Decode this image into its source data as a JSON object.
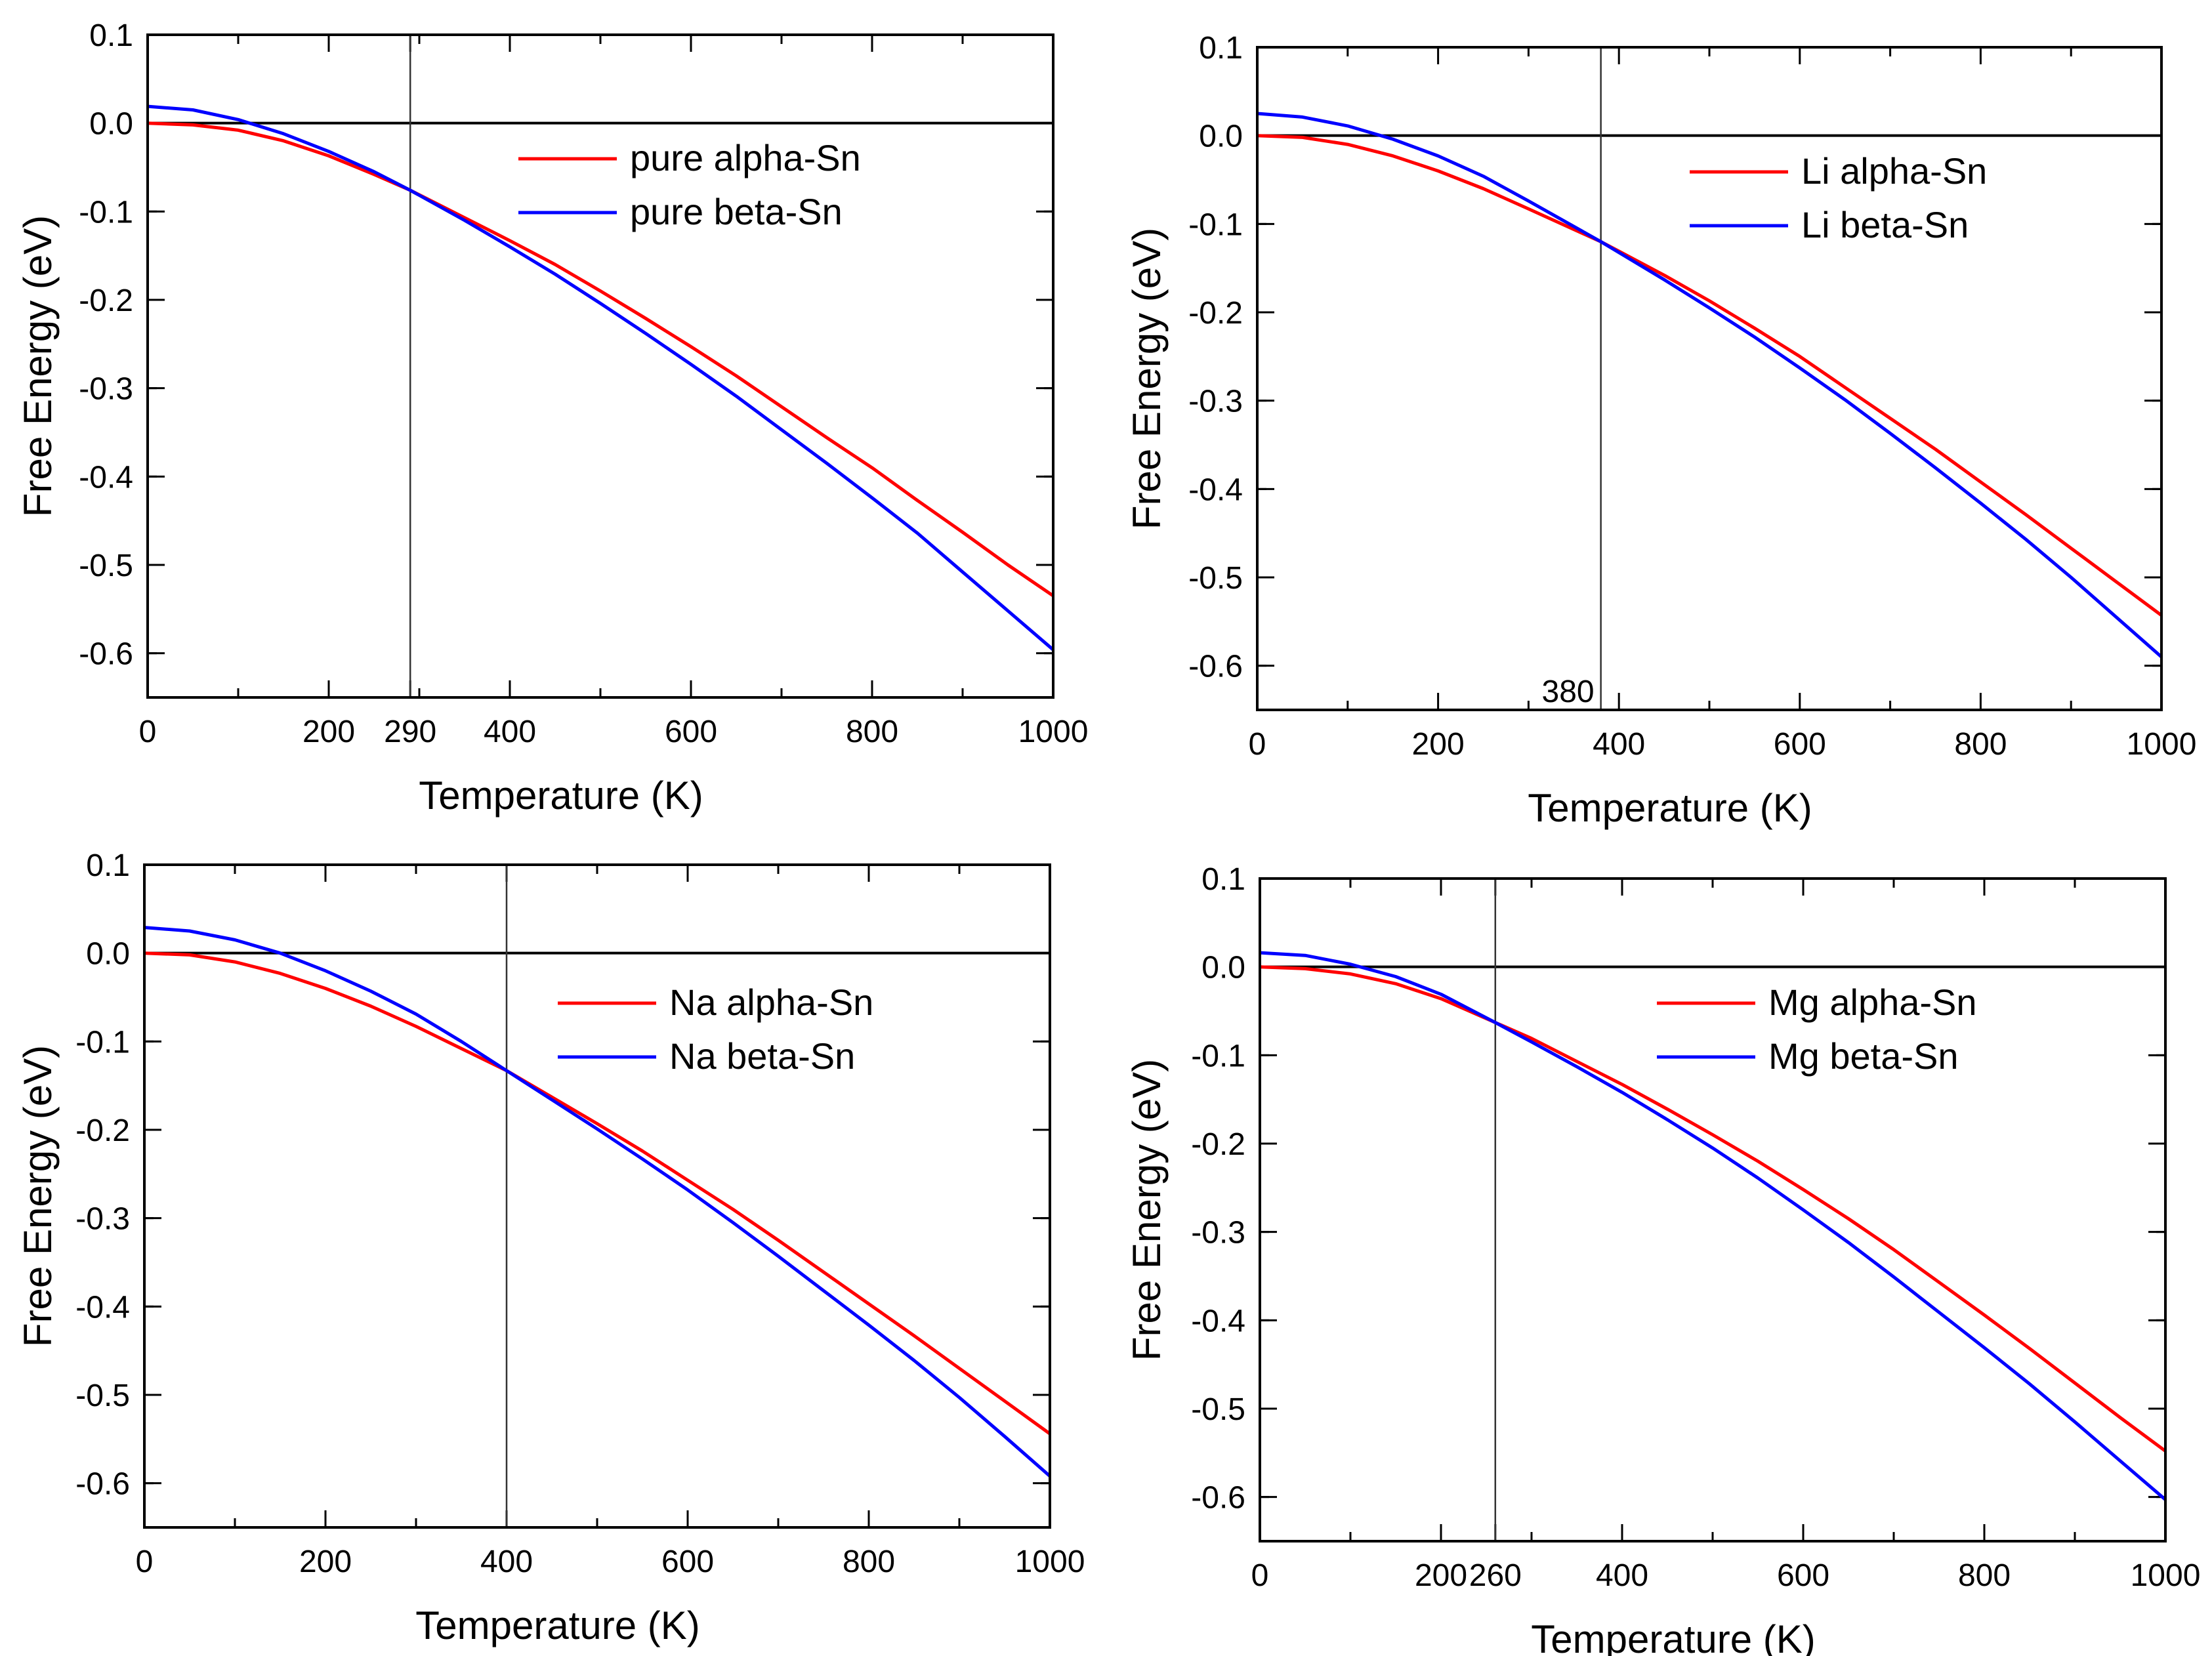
{
  "chart_data": [
    {
      "type": "line",
      "xlabel": "Temperature (K)",
      "ylabel": "Free Energy (eV)",
      "xlim": [
        0,
        1000
      ],
      "ylim": [
        -0.65,
        0.1
      ],
      "x_ticks": [
        0,
        200,
        290,
        400,
        600,
        800,
        1000
      ],
      "x_tick_labels": [
        "0",
        "200",
        "290",
        "400",
        "600",
        "800",
        "1000"
      ],
      "y_ticks": [
        0.1,
        0.0,
        -0.1,
        -0.2,
        -0.3,
        -0.4,
        -0.5,
        -0.6
      ],
      "y_tick_labels": [
        "0.1",
        "0.0",
        "-0.1",
        "-0.2",
        "-0.3",
        "-0.4",
        "-0.5",
        "-0.6"
      ],
      "reference_line_y": 0.0,
      "vertical_line_x": 290,
      "vertical_annotation": "",
      "legend_position": "top-right",
      "series": [
        {
          "name": "pure alpha-Sn",
          "color": "#ff0000",
          "x": [
            0,
            50,
            100,
            150,
            200,
            250,
            290,
            350,
            400,
            450,
            500,
            550,
            600,
            650,
            700,
            750,
            800,
            850,
            900,
            950,
            1000
          ],
          "y": [
            0.0,
            -0.002,
            -0.008,
            -0.02,
            -0.037,
            -0.058,
            -0.076,
            -0.107,
            -0.133,
            -0.16,
            -0.19,
            -0.221,
            -0.253,
            -0.286,
            -0.321,
            -0.356,
            -0.39,
            -0.427,
            -0.463,
            -0.5,
            -0.535
          ]
        },
        {
          "name": "pure beta-Sn",
          "color": "#0000ff",
          "x": [
            0,
            50,
            100,
            150,
            200,
            250,
            290,
            350,
            400,
            450,
            500,
            550,
            600,
            650,
            700,
            750,
            800,
            850,
            900,
            950,
            1000
          ],
          "y": [
            0.019,
            0.015,
            0.004,
            -0.012,
            -0.032,
            -0.055,
            -0.076,
            -0.11,
            -0.14,
            -0.171,
            -0.204,
            -0.238,
            -0.273,
            -0.309,
            -0.347,
            -0.385,
            -0.424,
            -0.464,
            -0.508,
            -0.552,
            -0.596
          ]
        }
      ]
    },
    {
      "type": "line",
      "xlabel": "Temperature (K)",
      "ylabel": "Free Energy (eV)",
      "xlim": [
        0,
        1000
      ],
      "ylim": [
        -0.65,
        0.1
      ],
      "x_ticks": [
        0,
        200,
        400,
        600,
        800,
        1000
      ],
      "x_tick_labels": [
        "0",
        "200",
        "400",
        "600",
        "800",
        "1000"
      ],
      "y_ticks": [
        0.1,
        0.0,
        -0.1,
        -0.2,
        -0.3,
        -0.4,
        -0.5,
        -0.6
      ],
      "y_tick_labels": [
        "0.1",
        "0.0",
        "-0.1",
        "-0.2",
        "-0.3",
        "-0.4",
        "-0.5",
        "-0.6"
      ],
      "reference_line_y": 0.0,
      "vertical_line_x": 380,
      "vertical_annotation": "380",
      "legend_position": "top-right",
      "series": [
        {
          "name": "Li alpha-Sn",
          "color": "#ff0000",
          "x": [
            0,
            50,
            100,
            150,
            200,
            250,
            300,
            380,
            450,
            500,
            550,
            600,
            650,
            700,
            750,
            800,
            850,
            900,
            950,
            1000
          ],
          "y": [
            0.0,
            -0.002,
            -0.01,
            -0.023,
            -0.04,
            -0.06,
            -0.083,
            -0.12,
            -0.158,
            -0.187,
            -0.218,
            -0.25,
            -0.285,
            -0.32,
            -0.355,
            -0.392,
            -0.429,
            -0.467,
            -0.505,
            -0.543
          ]
        },
        {
          "name": "Li beta-Sn",
          "color": "#0000ff",
          "x": [
            0,
            50,
            100,
            150,
            200,
            250,
            300,
            380,
            450,
            500,
            550,
            600,
            650,
            700,
            750,
            800,
            850,
            900,
            950,
            1000
          ],
          "y": [
            0.025,
            0.021,
            0.011,
            -0.004,
            -0.023,
            -0.046,
            -0.074,
            -0.12,
            -0.163,
            -0.195,
            -0.228,
            -0.263,
            -0.299,
            -0.337,
            -0.376,
            -0.416,
            -0.457,
            -0.5,
            -0.545,
            -0.59
          ]
        }
      ]
    },
    {
      "type": "line",
      "xlabel": "Temperature (K)",
      "ylabel": "Free Energy (eV)",
      "xlim": [
        0,
        1000
      ],
      "ylim": [
        -0.65,
        0.1
      ],
      "x_ticks": [
        0,
        200,
        400,
        600,
        800,
        1000
      ],
      "x_tick_labels": [
        "0",
        "200",
        "400",
        "600",
        "800",
        "1000"
      ],
      "y_ticks": [
        0.1,
        0.0,
        -0.1,
        -0.2,
        -0.3,
        -0.4,
        -0.5,
        -0.6
      ],
      "y_tick_labels": [
        "0.1",
        "0.0",
        "-0.1",
        "-0.2",
        "-0.3",
        "-0.4",
        "-0.5",
        "-0.6"
      ],
      "reference_line_y": 0.0,
      "vertical_line_x": 400,
      "vertical_annotation": "",
      "legend_position": "top-right",
      "series": [
        {
          "name": "Na alpha-Sn",
          "color": "#ff0000",
          "x": [
            0,
            50,
            100,
            150,
            200,
            250,
            300,
            350,
            400,
            450,
            500,
            550,
            600,
            650,
            700,
            750,
            800,
            850,
            900,
            950,
            1000
          ],
          "y": [
            0.0,
            -0.002,
            -0.01,
            -0.023,
            -0.04,
            -0.06,
            -0.083,
            -0.108,
            -0.133,
            -0.163,
            -0.193,
            -0.224,
            -0.257,
            -0.29,
            -0.325,
            -0.361,
            -0.397,
            -0.433,
            -0.47,
            -0.507,
            -0.544
          ]
        },
        {
          "name": "Na beta-Sn",
          "color": "#0000ff",
          "x": [
            0,
            50,
            100,
            150,
            200,
            250,
            300,
            350,
            400,
            450,
            500,
            550,
            600,
            650,
            700,
            750,
            800,
            850,
            900,
            950,
            1000
          ],
          "y": [
            0.029,
            0.025,
            0.015,
            0.0,
            -0.02,
            -0.043,
            -0.069,
            -0.1,
            -0.133,
            -0.166,
            -0.199,
            -0.233,
            -0.268,
            -0.305,
            -0.343,
            -0.382,
            -0.421,
            -0.461,
            -0.503,
            -0.547,
            -0.592
          ]
        }
      ]
    },
    {
      "type": "line",
      "xlabel": "Temperature (K)",
      "ylabel": "Free Energy (eV)",
      "xlim": [
        0,
        1000
      ],
      "ylim": [
        -0.65,
        0.1
      ],
      "x_ticks": [
        0,
        200,
        260,
        400,
        600,
        800,
        1000
      ],
      "x_tick_labels": [
        "0",
        "200",
        "260",
        "400",
        "600",
        "800",
        "1000"
      ],
      "y_ticks": [
        0.1,
        0.0,
        -0.1,
        -0.2,
        -0.3,
        -0.4,
        -0.5,
        -0.6
      ],
      "y_tick_labels": [
        "0.1",
        "0.0",
        "-0.1",
        "-0.2",
        "-0.3",
        "-0.4",
        "-0.5",
        "-0.6"
      ],
      "reference_line_y": 0.0,
      "vertical_line_x": 260,
      "vertical_annotation": "",
      "legend_position": "top-right",
      "series": [
        {
          "name": "Mg alpha-Sn",
          "color": "#ff0000",
          "x": [
            0,
            50,
            100,
            150,
            200,
            260,
            300,
            350,
            400,
            450,
            500,
            550,
            600,
            650,
            700,
            750,
            800,
            850,
            900,
            950,
            1000
          ],
          "y": [
            0.0,
            -0.002,
            -0.008,
            -0.019,
            -0.036,
            -0.063,
            -0.081,
            -0.107,
            -0.133,
            -0.161,
            -0.19,
            -0.22,
            -0.252,
            -0.285,
            -0.32,
            -0.357,
            -0.394,
            -0.432,
            -0.471,
            -0.51,
            -0.548
          ]
        },
        {
          "name": "Mg beta-Sn",
          "color": "#0000ff",
          "x": [
            0,
            50,
            100,
            150,
            200,
            260,
            300,
            350,
            400,
            450,
            500,
            550,
            600,
            650,
            700,
            750,
            800,
            850,
            900,
            950,
            1000
          ],
          "y": [
            0.016,
            0.013,
            0.003,
            -0.011,
            -0.031,
            -0.063,
            -0.085,
            -0.113,
            -0.142,
            -0.173,
            -0.205,
            -0.239,
            -0.275,
            -0.312,
            -0.351,
            -0.391,
            -0.431,
            -0.472,
            -0.515,
            -0.559,
            -0.603
          ]
        }
      ]
    }
  ]
}
